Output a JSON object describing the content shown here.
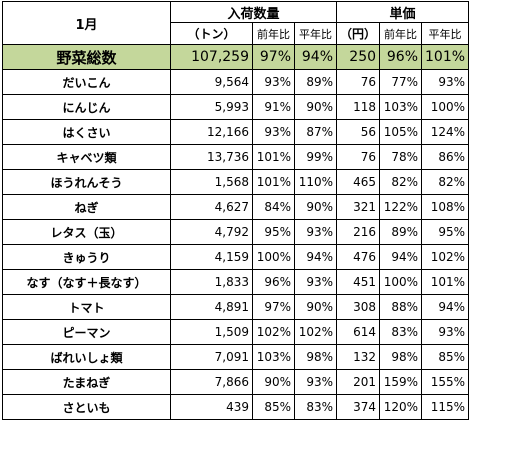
{
  "header": {
    "month": "1月",
    "group_volume": "入荷数量",
    "group_price": "単価",
    "unit_volume": "（トン）",
    "unit_price": "（円）",
    "sub_prev_year": "前年比",
    "sub_avg_year": "平年比"
  },
  "total": {
    "name": "野菜総数",
    "volume": "107,259",
    "vol_prev": "97%",
    "vol_avg": "94%",
    "price": "250",
    "price_prev": "96%",
    "price_avg": "101%"
  },
  "rows": [
    {
      "name": "だいこん",
      "volume": "9,564",
      "vol_prev": "93%",
      "vol_avg": "89%",
      "price": "76",
      "price_prev": "77%",
      "price_avg": "93%"
    },
    {
      "name": "にんじん",
      "volume": "5,993",
      "vol_prev": "91%",
      "vol_avg": "90%",
      "price": "118",
      "price_prev": "103%",
      "price_avg": "100%"
    },
    {
      "name": "はくさい",
      "volume": "12,166",
      "vol_prev": "93%",
      "vol_avg": "87%",
      "price": "56",
      "price_prev": "105%",
      "price_avg": "124%"
    },
    {
      "name": "キャベツ類",
      "volume": "13,736",
      "vol_prev": "101%",
      "vol_avg": "99%",
      "price": "76",
      "price_prev": "78%",
      "price_avg": "86%"
    },
    {
      "name": "ほうれんそう",
      "volume": "1,568",
      "vol_prev": "101%",
      "vol_avg": "110%",
      "price": "465",
      "price_prev": "82%",
      "price_avg": "82%"
    },
    {
      "name": "ねぎ",
      "volume": "4,627",
      "vol_prev": "84%",
      "vol_avg": "90%",
      "price": "321",
      "price_prev": "122%",
      "price_avg": "108%"
    },
    {
      "name": "レタス（玉）",
      "volume": "4,792",
      "vol_prev": "95%",
      "vol_avg": "93%",
      "price": "216",
      "price_prev": "89%",
      "price_avg": "95%"
    },
    {
      "name": "きゅうり",
      "volume": "4,159",
      "vol_prev": "100%",
      "vol_avg": "94%",
      "price": "476",
      "price_prev": "94%",
      "price_avg": "102%"
    },
    {
      "name": "なす（なす＋長なす）",
      "volume": "1,833",
      "vol_prev": "96%",
      "vol_avg": "93%",
      "price": "451",
      "price_prev": "100%",
      "price_avg": "101%"
    },
    {
      "name": "トマト",
      "volume": "4,891",
      "vol_prev": "97%",
      "vol_avg": "90%",
      "price": "308",
      "price_prev": "88%",
      "price_avg": "94%"
    },
    {
      "name": "ピーマン",
      "volume": "1,509",
      "vol_prev": "102%",
      "vol_avg": "102%",
      "price": "614",
      "price_prev": "83%",
      "price_avg": "93%"
    },
    {
      "name": "ばれいしょ類",
      "volume": "7,091",
      "vol_prev": "103%",
      "vol_avg": "98%",
      "price": "132",
      "price_prev": "98%",
      "price_avg": "85%"
    },
    {
      "name": "たまねぎ",
      "volume": "7,866",
      "vol_prev": "90%",
      "vol_avg": "93%",
      "price": "201",
      "price_prev": "159%",
      "price_avg": "155%"
    },
    {
      "name": "さといも",
      "volume": "439",
      "vol_prev": "85%",
      "vol_avg": "83%",
      "price": "374",
      "price_prev": "120%",
      "price_avg": "115%"
    }
  ]
}
